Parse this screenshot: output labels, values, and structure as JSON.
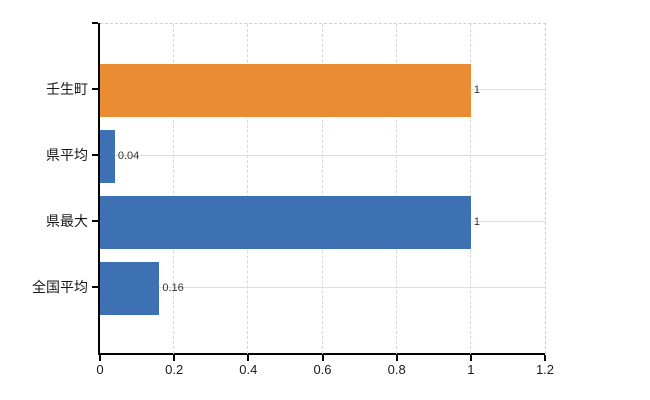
{
  "chart_data": {
    "type": "bar",
    "orientation": "horizontal",
    "title": "",
    "xlabel": "",
    "ylabel": "",
    "categories": [
      "壬生町",
      "県平均",
      "県最大",
      "全国平均"
    ],
    "values": [
      1,
      0.04,
      1,
      0.16
    ],
    "value_labels": [
      "1",
      "0.04",
      "1",
      "0.16"
    ],
    "series": [
      {
        "name": "",
        "values": [
          1,
          0.04,
          1,
          0.16
        ]
      }
    ],
    "bar_colors": [
      "#EA8C33",
      "#3E71B4",
      "#3E71B4",
      "#3E71B4"
    ],
    "xlim": [
      0,
      1.2
    ],
    "x_ticks": [
      "0",
      "0.2",
      "0.4",
      "0.6",
      "0.8",
      "1",
      "1.2"
    ],
    "x_tick_values": [
      0,
      0.2,
      0.4,
      0.6,
      0.8,
      1,
      1.2
    ],
    "grid": true,
    "legend": false
  },
  "colors": {
    "bar_orange": "#EA8C33",
    "bar_blue": "#3E71B4",
    "axis": "#000000",
    "grid_vertical": "#ded4d4",
    "grid_horizontal": "#d9e1d9",
    "border_dashed": "#d6cccc",
    "tick_label": "#1a1a1a",
    "value_label": "#333333",
    "background": "#ffffff"
  }
}
